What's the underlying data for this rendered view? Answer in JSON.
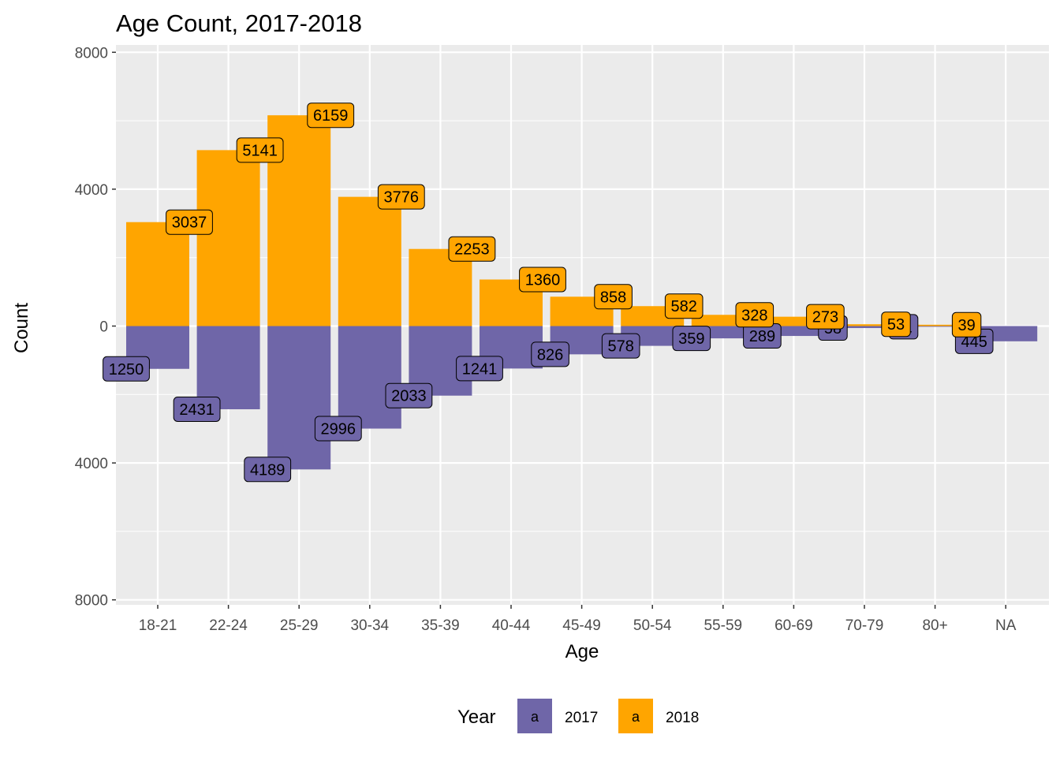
{
  "chart_data": {
    "type": "bar",
    "title": "Age Count, 2017-2018",
    "xlabel": "Age",
    "ylabel": "Count",
    "categories": [
      "18-21",
      "22-24",
      "25-29",
      "30-34",
      "35-39",
      "40-44",
      "45-49",
      "50-54",
      "55-59",
      "60-69",
      "70-79",
      "80+",
      "NA"
    ],
    "series": [
      {
        "name": "2017",
        "direction": "down",
        "color": "#6f66a8",
        "values": [
          1250,
          2431,
          4189,
          2996,
          2033,
          1241,
          826,
          578,
          359,
          289,
          58,
          21,
          445
        ]
      },
      {
        "name": "2018",
        "direction": "up",
        "color": "#ffa500",
        "values": [
          3037,
          5141,
          6159,
          3776,
          2253,
          1360,
          858,
          582,
          328,
          273,
          53,
          39,
          null
        ]
      }
    ],
    "ylim": [
      -8000,
      8000
    ],
    "y_ticks": [
      {
        "value": 8000,
        "label": "8000"
      },
      {
        "value": 4000,
        "label": "4000"
      },
      {
        "value": 0,
        "label": "0"
      },
      {
        "value": -4000,
        "label": "4000"
      },
      {
        "value": -8000,
        "label": "8000"
      }
    ],
    "grid": true,
    "legend": {
      "title": "Year",
      "position": "bottom",
      "key_glyph": "a",
      "entries": [
        "2017",
        "2018"
      ]
    }
  }
}
